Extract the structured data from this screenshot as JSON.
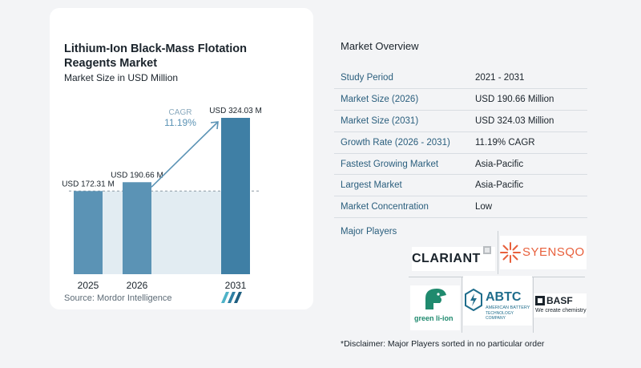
{
  "chart_data": {
    "type": "bar",
    "title": "Lithium-Ion Black-Mass Flotation Reagents Market",
    "subtitle": "Market Size in USD Million",
    "categories": [
      "2025",
      "2026",
      "2031"
    ],
    "values": [
      172.31,
      190.66,
      324.03
    ],
    "value_labels": [
      "USD 172.31 M",
      "USD 190.66 M",
      "USD 324.03 M"
    ],
    "ylim": [
      0,
      324.03
    ],
    "cagr_label": "CAGR",
    "cagr_value": "11.19%",
    "bar_color": "#5b93b5",
    "highlight_bar_color": "#3f7fa5",
    "shade_color": "#e2ecf2",
    "arrow_color": "#5b93b5"
  },
  "source": "Source: Mordor Intelligence",
  "overview": {
    "title": "Market Overview",
    "rows": [
      {
        "label": "Study Period",
        "value": "2021 - 2031"
      },
      {
        "label": "Market Size (2026)",
        "value": "USD 190.66 Million"
      },
      {
        "label": "Market Size (2031)",
        "value": "USD 324.03 Million"
      },
      {
        "label": "Growth Rate (2026 - 2031)",
        "value": "11.19% CAGR"
      },
      {
        "label": "Fastest Growing Market",
        "value": "Asia-Pacific"
      },
      {
        "label": "Largest Market",
        "value": "Asia-Pacific"
      },
      {
        "label": "Market Concentration",
        "value": "Low"
      }
    ],
    "players_title": "Major Players"
  },
  "players": {
    "clariant": "CLARIANT",
    "syensqo": "SYENSQO",
    "greenlion": "green li-ion",
    "abtc": "ABTC",
    "abtc_sub1": "AMERICAN BATTERY",
    "abtc_sub2": "TECHNOLOGY COMPANY",
    "basf": "BASF",
    "basf_tagline": "We create chemistry"
  },
  "disclaimer": "*Disclaimer: Major Players sorted in no particular order",
  "colors": {
    "label_blue": "#2a5e7d",
    "card_bg": "#ffffff",
    "page_bg": "#f3f4f6"
  }
}
